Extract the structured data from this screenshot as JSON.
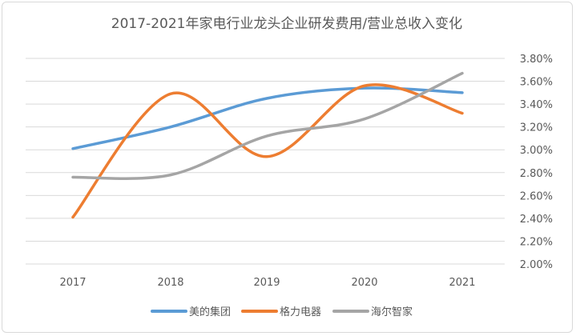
{
  "chart_data": {
    "type": "line",
    "title": "2017-2021年家电行业龙头企业研发费用/营业总收入变化",
    "categories": [
      "2017",
      "2018",
      "2019",
      "2020",
      "2021"
    ],
    "y_axis": {
      "position": "right",
      "ylim": [
        0.02,
        0.038
      ],
      "tick_labels": [
        "2.00%",
        "2.20%",
        "2.40%",
        "2.60%",
        "2.80%",
        "3.00%",
        "3.20%",
        "3.40%",
        "3.60%",
        "3.80%"
      ],
      "tick_values": [
        0.02,
        0.022,
        0.024,
        0.026,
        0.028,
        0.03,
        0.032,
        0.034,
        0.036,
        0.038
      ]
    },
    "grid": true,
    "smooth": true,
    "legend_position": "bottom",
    "series": [
      {
        "name": "美的集团",
        "color": "#5b9bd5",
        "values": [
          0.0301,
          0.032,
          0.0345,
          0.0354,
          0.035
        ]
      },
      {
        "name": "格力电器",
        "color": "#ed7d31",
        "values": [
          0.0241,
          0.0349,
          0.0294,
          0.0356,
          0.0332
        ]
      },
      {
        "name": "海尔智家",
        "color": "#a5a5a5",
        "values": [
          0.0276,
          0.0278,
          0.0312,
          0.0327,
          0.0367
        ]
      }
    ]
  }
}
